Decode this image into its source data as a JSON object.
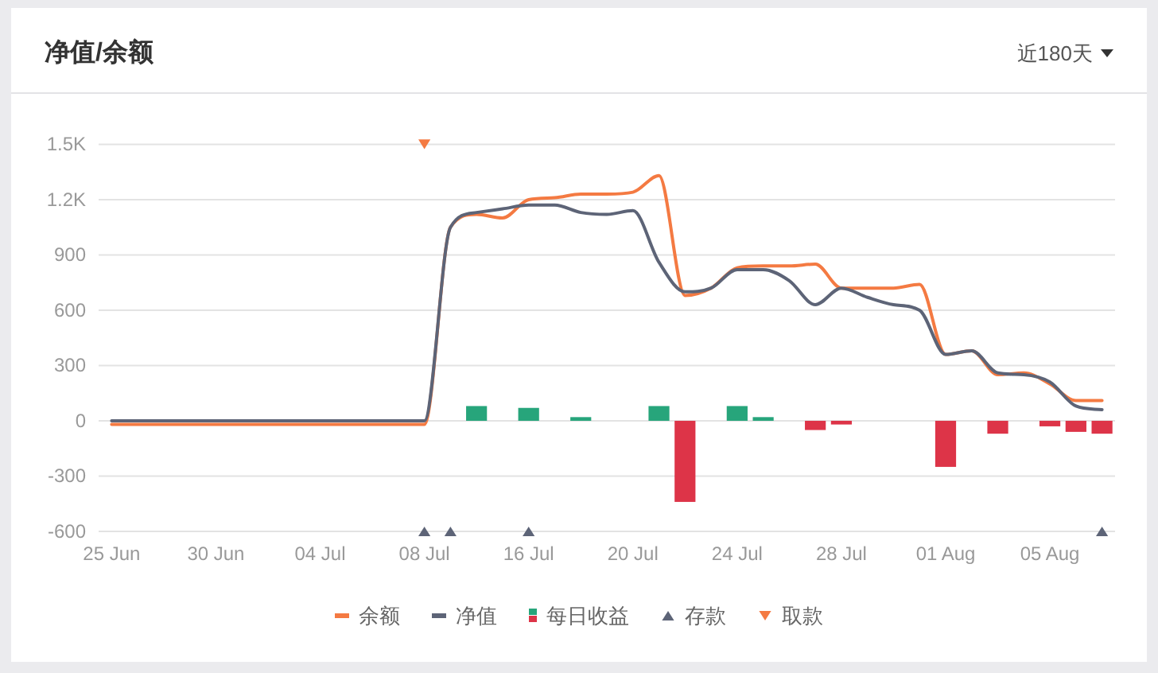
{
  "chart_data": {
    "type": "line",
    "title": "净值/余额",
    "annotations": [
      "近180天"
    ],
    "categories": [
      "25 Jun",
      null,
      null,
      null,
      "30 Jun",
      null,
      null,
      null,
      "04 Jul",
      null,
      null,
      null,
      "08 Jul",
      null,
      null,
      null,
      "16 Jul",
      null,
      null,
      null,
      "20 Jul",
      null,
      null,
      null,
      "24 Jul",
      null,
      null,
      null,
      "28 Jul",
      null,
      null,
      null,
      "01 Aug",
      null,
      null,
      null,
      "05 Aug",
      null,
      null
    ],
    "ylim": [
      -600,
      1500
    ],
    "yticks": [
      -600,
      -300,
      0,
      300,
      600,
      900,
      {
        "value": 1200,
        "label": "1.2K"
      },
      {
        "value": 1500,
        "label": "1.5K"
      }
    ],
    "grid": "y",
    "legend": "bottom",
    "series": [
      {
        "name": "余额",
        "color": "#f47a42",
        "values": [
          -20,
          -20,
          -20,
          -20,
          -20,
          -20,
          -20,
          -20,
          -20,
          -20,
          -20,
          -20,
          -20,
          1050,
          1120,
          1100,
          1200,
          1210,
          1230,
          1230,
          1240,
          1330,
          680,
          720,
          830,
          840,
          840,
          850,
          720,
          720,
          720,
          740,
          360,
          380,
          250,
          260,
          200,
          110,
          110
        ]
      },
      {
        "name": "净值",
        "color": "#5d6477",
        "values": [
          0,
          0,
          0,
          0,
          0,
          0,
          0,
          0,
          0,
          0,
          0,
          0,
          0,
          1050,
          1130,
          1150,
          1170,
          1170,
          1130,
          1120,
          1140,
          860,
          700,
          720,
          820,
          820,
          760,
          630,
          720,
          670,
          630,
          600,
          360,
          380,
          260,
          250,
          210,
          80,
          60
        ]
      },
      {
        "name": "每日收益",
        "type": "bar",
        "colors": [
          null,
          null,
          null,
          null,
          null,
          null,
          null,
          null,
          null,
          null,
          null,
          null,
          null,
          null,
          "#27a57b",
          null,
          "#27a57b",
          null,
          "#27a57b",
          null,
          null,
          "#27a57b",
          "#dd3448",
          null,
          "#27a57b",
          "#27a57b",
          null,
          "#dd3448",
          "#dd3448",
          null,
          null,
          null,
          "#dd3448",
          null,
          "#dd3448",
          null,
          "#dd3448",
          "#dd3448",
          "#dd3448"
        ],
        "values": [
          null,
          null,
          null,
          null,
          null,
          null,
          null,
          null,
          null,
          null,
          null,
          null,
          null,
          null,
          80,
          null,
          70,
          null,
          20,
          null,
          null,
          80,
          -440,
          null,
          80,
          20,
          null,
          -50,
          -20,
          null,
          null,
          null,
          -250,
          null,
          -70,
          null,
          -30,
          -60,
          -70
        ]
      },
      {
        "name": "存款",
        "type": "scatter",
        "marker": "triangle",
        "color": "#5d6477",
        "values": [
          null,
          null,
          null,
          null,
          null,
          null,
          null,
          null,
          null,
          null,
          null,
          null,
          -600,
          -600,
          null,
          null,
          -600,
          null,
          null,
          null,
          null,
          null,
          null,
          null,
          null,
          null,
          null,
          null,
          null,
          null,
          null,
          null,
          null,
          null,
          null,
          null,
          null,
          null,
          -600
        ]
      },
      {
        "name": "取款",
        "type": "scatter",
        "marker": "triangle-down",
        "color": "#f47a42",
        "values": [
          null,
          null,
          null,
          null,
          null,
          null,
          null,
          null,
          null,
          null,
          null,
          null,
          1500,
          null,
          null,
          null,
          null,
          null,
          null,
          null,
          null,
          null,
          null,
          null,
          null,
          null,
          null,
          null,
          null,
          null,
          null,
          null,
          null,
          null,
          null,
          null,
          null,
          null,
          null
        ]
      }
    ]
  }
}
